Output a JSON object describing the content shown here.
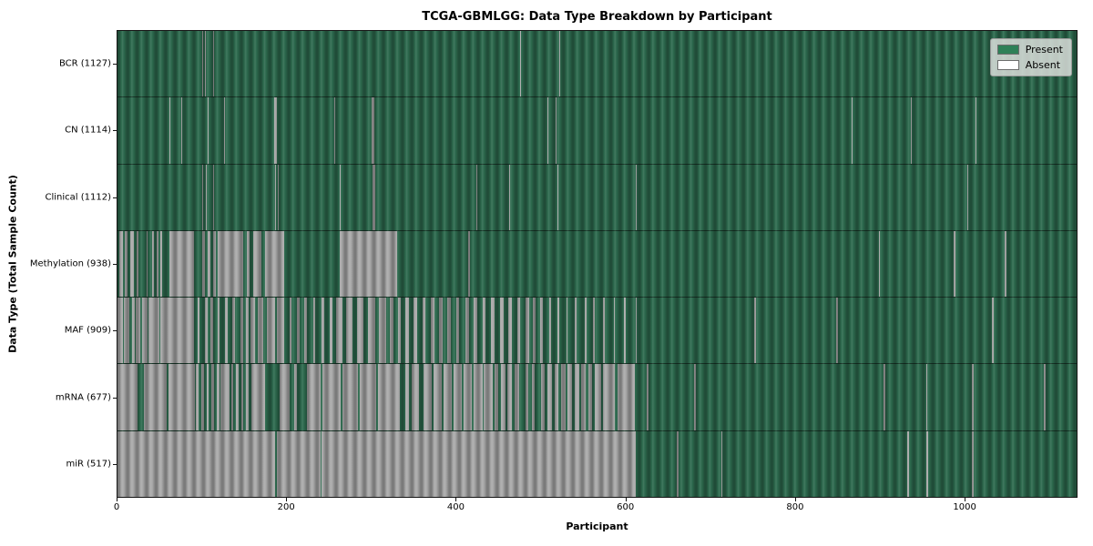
{
  "title": "TCGA-GBMLGG: Data Type Breakdown by Participant",
  "chart_data": {
    "type": "heatmap",
    "title": "TCGA-GBMLGG: Data Type Breakdown by Participant",
    "xlabel": "Participant",
    "ylabel": "Data Type (Total Sample Count)",
    "x_max": 1133,
    "x_ticks": [
      0,
      200,
      400,
      600,
      800,
      1000
    ],
    "grid": false,
    "legend_position": "upper right",
    "legend": [
      {
        "label": "Present",
        "color": "#2e8057"
      },
      {
        "label": "Absent",
        "color": "#ffffff"
      }
    ],
    "colors": {
      "present_fill": "#2d6a4e",
      "absent_fill": "#a9a9a9",
      "row_divider": "#16241c",
      "axis_color": "#141414"
    },
    "rows": [
      {
        "name": "BCR",
        "count": 1127,
        "display": "BCR (1127)",
        "absent_segments": [
          [
            100,
            101
          ],
          [
            103,
            104
          ],
          [
            113,
            114
          ],
          [
            476,
            477
          ],
          [
            522,
            523
          ]
        ]
      },
      {
        "name": "CN",
        "count": 1114,
        "display": "CN (1114)",
        "absent_segments": [
          [
            61,
            62
          ],
          [
            75,
            76
          ],
          [
            107,
            108
          ],
          [
            126,
            127
          ],
          [
            185,
            188
          ],
          [
            256,
            257
          ],
          [
            300,
            303
          ],
          [
            508,
            509
          ],
          [
            518,
            519
          ],
          [
            867,
            868
          ],
          [
            937,
            938
          ],
          [
            1014,
            1015
          ]
        ]
      },
      {
        "name": "Clinical",
        "count": 1112,
        "display": "Clinical (1112)",
        "absent_segments": [
          [
            100,
            101
          ],
          [
            104,
            105
          ],
          [
            113,
            114
          ],
          [
            186,
            187
          ],
          [
            189,
            190
          ],
          [
            262,
            263
          ],
          [
            301,
            305
          ],
          [
            424,
            425
          ],
          [
            463,
            464
          ],
          [
            520,
            521
          ],
          [
            612,
            613
          ],
          [
            1004,
            1005
          ]
        ]
      },
      {
        "name": "Methylation",
        "count": 938,
        "display": "Methylation (938)",
        "absent_segments": [
          [
            2,
            6
          ],
          [
            9,
            12
          ],
          [
            15,
            19
          ],
          [
            23,
            25
          ],
          [
            34,
            36
          ],
          [
            41,
            43
          ],
          [
            46,
            48
          ],
          [
            51,
            53
          ],
          [
            61,
            90
          ],
          [
            100,
            103
          ],
          [
            107,
            110
          ],
          [
            113,
            116
          ],
          [
            118,
            148
          ],
          [
            153,
            156
          ],
          [
            160,
            170
          ],
          [
            174,
            197
          ],
          [
            262,
            330
          ],
          [
            414,
            416
          ],
          [
            899,
            901
          ],
          [
            988,
            990
          ],
          [
            1048,
            1050
          ]
        ]
      },
      {
        "name": "MAF",
        "count": 909,
        "display": "MAF (909)",
        "absent_segments": [
          [
            0,
            6
          ],
          [
            8,
            14
          ],
          [
            17,
            20
          ],
          [
            22,
            27
          ],
          [
            29,
            35
          ],
          [
            37,
            49
          ],
          [
            51,
            90
          ],
          [
            95,
            97
          ],
          [
            103,
            106
          ],
          [
            110,
            113
          ],
          [
            118,
            121
          ],
          [
            127,
            130
          ],
          [
            136,
            139
          ],
          [
            145,
            148
          ],
          [
            152,
            155
          ],
          [
            157,
            163
          ],
          [
            166,
            172
          ],
          [
            176,
            186
          ],
          [
            188,
            197
          ],
          [
            203,
            206
          ],
          [
            212,
            215
          ],
          [
            221,
            224
          ],
          [
            231,
            234
          ],
          [
            241,
            244
          ],
          [
            251,
            254
          ],
          [
            258,
            266
          ],
          [
            270,
            278
          ],
          [
            283,
            291
          ],
          [
            296,
            304
          ],
          [
            309,
            317
          ],
          [
            322,
            326
          ],
          [
            331,
            335
          ],
          [
            340,
            344
          ],
          [
            350,
            354
          ],
          [
            360,
            364
          ],
          [
            370,
            374
          ],
          [
            380,
            384
          ],
          [
            390,
            394
          ],
          [
            400,
            404
          ],
          [
            411,
            415
          ],
          [
            421,
            425
          ],
          [
            431,
            435
          ],
          [
            441,
            445
          ],
          [
            452,
            456
          ],
          [
            462,
            466
          ],
          [
            472,
            476
          ],
          [
            482,
            486
          ],
          [
            491,
            494
          ],
          [
            499,
            502
          ],
          [
            510,
            512
          ],
          [
            520,
            522
          ],
          [
            530,
            532
          ],
          [
            540,
            542
          ],
          [
            552,
            554
          ],
          [
            562,
            564
          ],
          [
            574,
            576
          ],
          [
            586,
            588
          ],
          [
            598,
            600
          ],
          [
            612,
            613
          ],
          [
            752,
            754
          ],
          [
            849,
            851
          ],
          [
            1033,
            1035
          ]
        ]
      },
      {
        "name": "mRNA",
        "count": 677,
        "display": "mRNA (677)",
        "absent_segments": [
          [
            0,
            24
          ],
          [
            31,
            58
          ],
          [
            60,
            91
          ],
          [
            93,
            96
          ],
          [
            99,
            102
          ],
          [
            105,
            108
          ],
          [
            111,
            114
          ],
          [
            117,
            120
          ],
          [
            122,
            132
          ],
          [
            134,
            137
          ],
          [
            140,
            143
          ],
          [
            146,
            149
          ],
          [
            152,
            155
          ],
          [
            158,
            174
          ],
          [
            191,
            203
          ],
          [
            209,
            212
          ],
          [
            224,
            240
          ],
          [
            242,
            264
          ],
          [
            266,
            284
          ],
          [
            286,
            306
          ],
          [
            308,
            334
          ],
          [
            340,
            344
          ],
          [
            348,
            356
          ],
          [
            361,
            371
          ],
          [
            373,
            383
          ],
          [
            385,
            395
          ],
          [
            397,
            407
          ],
          [
            409,
            419
          ],
          [
            421,
            431
          ],
          [
            433,
            443
          ],
          [
            445,
            450
          ],
          [
            453,
            458
          ],
          [
            461,
            466
          ],
          [
            469,
            474
          ],
          [
            482,
            485
          ],
          [
            490,
            493
          ],
          [
            500,
            505
          ],
          [
            508,
            513
          ],
          [
            516,
            521
          ],
          [
            524,
            529
          ],
          [
            532,
            537
          ],
          [
            540,
            545
          ],
          [
            548,
            553
          ],
          [
            556,
            561
          ],
          [
            564,
            571
          ],
          [
            573,
            588
          ],
          [
            591,
            611
          ],
          [
            625,
            627
          ],
          [
            681,
            683
          ],
          [
            905,
            907
          ],
          [
            955,
            957
          ],
          [
            1009,
            1011
          ],
          [
            1094,
            1096
          ]
        ]
      },
      {
        "name": "miR",
        "count": 517,
        "display": "miR (517)",
        "absent_segments": [
          [
            0,
            186
          ],
          [
            188,
            240
          ],
          [
            241,
            612
          ],
          [
            661,
            663
          ],
          [
            713,
            715
          ],
          [
            933,
            935
          ],
          [
            956,
            958
          ],
          [
            1009,
            1011
          ]
        ]
      }
    ]
  }
}
